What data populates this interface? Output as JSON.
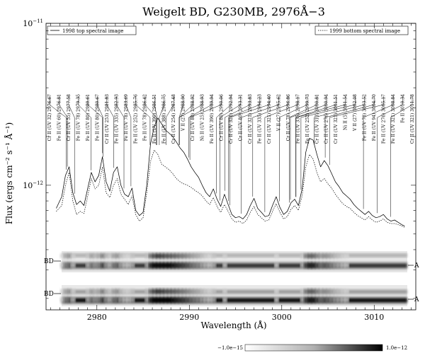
{
  "chart_data": {
    "type": "line",
    "title": "Weigelt BD, G230MB, 2976Å−3",
    "xlabel": "Wavelength (Å)",
    "ylabel": "Flux (ergs cm⁻² s⁻¹ Å⁻¹)",
    "xlim": [
      2974.5,
      3014.5
    ],
    "x_ticks": [
      2980,
      2990,
      3000,
      3010
    ],
    "y_scale": "log",
    "ylim": [
      1.7e-13,
      1e-11
    ],
    "y_tick_labels": [
      {
        "value": 1e-11,
        "base": "10",
        "exp": "−11"
      },
      {
        "value": 1e-12,
        "base": "10",
        "exp": "−12"
      }
    ],
    "legend": {
      "left": "1998 top spectral image",
      "right": "1999 bottom spectral image",
      "placement": "top"
    },
    "series": [
      {
        "style": "solid",
        "x": [
          2975.6,
          2976.2,
          2976.6,
          2977.0,
          2977.4,
          2977.8,
          2978.2,
          2978.6,
          2979.0,
          2979.4,
          2979.8,
          2980.2,
          2980.6,
          2981.0,
          2981.4,
          2981.8,
          2982.2,
          2982.6,
          2983.0,
          2983.4,
          2983.8,
          2984.2,
          2984.6,
          2985.0,
          2985.4,
          2985.8,
          2986.2,
          2986.6,
          2987.0,
          2987.4,
          2987.8,
          2988.2,
          2988.6,
          2989.0,
          2989.4,
          2989.8,
          2990.2,
          2990.6,
          2991.0,
          2991.4,
          2991.8,
          2992.2,
          2992.6,
          2993.0,
          2993.4,
          2993.8,
          2994.2,
          2994.6,
          2995.0,
          2995.4,
          2995.8,
          2996.2,
          2996.6,
          2997.0,
          2997.4,
          2997.8,
          2998.2,
          2998.6,
          2999.0,
          2999.4,
          2999.8,
          3000.2,
          3000.6,
          3001.0,
          3001.4,
          3001.8,
          3002.2,
          3002.6,
          3003.0,
          3003.4,
          3003.8,
          3004.2,
          3004.6,
          3005.0,
          3005.4,
          3005.8,
          3006.2,
          3006.6,
          3007.0,
          3007.4,
          3007.8,
          3008.2,
          3008.6,
          3009.0,
          3009.4,
          3009.8,
          3010.2,
          3010.6,
          3011.0,
          3011.4,
          3011.8,
          3012.2,
          3012.6,
          3013.0,
          3013.3
        ],
        "y": [
          7.2e-13,
          8.5e-13,
          1.15e-12,
          1.3e-12,
          9e-13,
          7.6e-13,
          8e-13,
          7.5e-13,
          9.5e-13,
          1.2e-12,
          1.05e-12,
          1.15e-12,
          1.5e-12,
          1.05e-12,
          9.2e-13,
          1.2e-12,
          1.3e-12,
          1e-12,
          8.8e-13,
          8.5e-13,
          9.6e-13,
          7e-13,
          6.5e-13,
          6.8e-13,
          1e-12,
          1.8e-12,
          2.3e-12,
          2.6e-12,
          2.4e-12,
          2.2e-12,
          2.1e-12,
          2e-12,
          1.85e-12,
          1.7e-12,
          1.6e-12,
          1.45e-12,
          1.3e-12,
          1.2e-12,
          1.12e-12,
          1e-12,
          9e-13,
          8.5e-13,
          9.5e-13,
          8.2e-13,
          7.4e-13,
          8.8e-13,
          7.6e-13,
          6.6e-13,
          6.3e-13,
          6.4e-13,
          6.2e-13,
          6.6e-13,
          7.5e-13,
          8.3e-13,
          7.2e-13,
          6.8e-13,
          6.4e-13,
          6.5e-13,
          7.5e-13,
          8.5e-13,
          7.3e-13,
          6.6e-13,
          6.9e-13,
          7.8e-13,
          8.2e-13,
          7.5e-13,
          9.5e-13,
          1.6e-12,
          1.95e-12,
          1.9e-12,
          1.55e-12,
          1.3e-12,
          1.42e-12,
          1.32e-12,
          1.18e-12,
          1.05e-12,
          9.8e-13,
          9e-13,
          8.6e-13,
          8.2e-13,
          7.6e-13,
          7.2e-13,
          6.9e-13,
          6.6e-13,
          6.9e-13,
          6.5e-13,
          6.3e-13,
          6.4e-13,
          6.6e-13,
          6.2e-13,
          6e-13,
          6.1e-13,
          5.9e-13,
          5.7e-13,
          5.6e-13
        ]
      },
      {
        "style": "dotted",
        "x": [
          2975.6,
          2976.2,
          2976.6,
          2977.0,
          2977.4,
          2977.8,
          2978.2,
          2978.6,
          2979.0,
          2979.4,
          2979.8,
          2980.2,
          2980.6,
          2981.0,
          2981.4,
          2981.8,
          2982.2,
          2982.6,
          2983.0,
          2983.4,
          2983.8,
          2984.2,
          2984.6,
          2985.0,
          2985.4,
          2985.8,
          2986.2,
          2986.6,
          2987.0,
          2987.4,
          2987.8,
          2988.2,
          2988.6,
          2989.0,
          2989.4,
          2989.8,
          2990.2,
          2990.6,
          2991.0,
          2991.4,
          2991.8,
          2992.2,
          2992.6,
          2993.0,
          2993.4,
          2993.8,
          2994.2,
          2994.6,
          2995.0,
          2995.4,
          2995.8,
          2996.2,
          2996.6,
          2997.0,
          2997.4,
          2997.8,
          2998.2,
          2998.6,
          2999.0,
          2999.4,
          2999.8,
          3000.2,
          3000.6,
          3001.0,
          3001.4,
          3001.8,
          3002.2,
          3002.6,
          3003.0,
          3003.4,
          3003.8,
          3004.2,
          3004.6,
          3005.0,
          3005.4,
          3005.8,
          3006.2,
          3006.6,
          3007.0,
          3007.4,
          3007.8,
          3008.2,
          3008.6,
          3009.0,
          3009.4,
          3009.8,
          3010.2,
          3010.6,
          3011.0,
          3011.4,
          3011.8,
          3012.2,
          3012.6,
          3013.0,
          3013.3
        ],
        "y": [
          6.9e-13,
          7.5e-13,
          1e-12,
          1.2e-12,
          8e-13,
          6.6e-13,
          6.9e-13,
          6.7e-13,
          8.5e-13,
          1.1e-12,
          9.5e-13,
          1e-12,
          1.3e-12,
          9e-13,
          8.4e-13,
          1e-12,
          1.1e-12,
          8.8e-13,
          8.2e-13,
          7.6e-13,
          8.6e-13,
          6.6e-13,
          6e-13,
          6.3e-13,
          9e-13,
          1.4e-12,
          1.65e-12,
          1.55e-12,
          1.35e-12,
          1.3e-12,
          1.25e-12,
          1.18e-12,
          1.1e-12,
          1.05e-12,
          1.02e-12,
          1e-12,
          9.7e-13,
          9.3e-13,
          9e-13,
          8.6e-13,
          8e-13,
          7.6e-13,
          8.4e-13,
          7.4e-13,
          6.8e-13,
          7.6e-13,
          6.9e-13,
          6.2e-13,
          5.9e-13,
          6e-13,
          5.8e-13,
          6.1e-13,
          6.8e-13,
          7.4e-13,
          6.6e-13,
          6.3e-13,
          6e-13,
          6.1e-13,
          6.9e-13,
          7.7e-13,
          6.8e-13,
          6.2e-13,
          6.4e-13,
          7.1e-13,
          7.5e-13,
          7e-13,
          8.6e-13,
          1.3e-12,
          1.55e-12,
          1.45e-12,
          1.2e-12,
          1.05e-12,
          1.1e-12,
          1.02e-12,
          9.6e-13,
          8.8e-13,
          8.2e-13,
          7.7e-13,
          7.4e-13,
          7.2e-13,
          6.8e-13,
          6.5e-13,
          6.3e-13,
          6.1e-13,
          6.4e-13,
          6.1e-13,
          5.9e-13,
          6e-13,
          6.2e-13,
          5.9e-13,
          5.8e-13,
          5.8e-13,
          5.7e-13,
          5.6e-13,
          5.5e-13
        ]
      }
    ],
    "line_ids": [
      {
        "label": "Cr II (UV 32) 2976.67",
        "wl": 2976.67
      },
      {
        "label": "Fe II (UV 60) 2976.81",
        "wl": 2976.81
      },
      {
        "label": "Cr II (UV 55) 2977.58",
        "wl": 2977.58
      },
      {
        "label": "Fe II (UV 78) 2979.35",
        "wl": 2979.35
      },
      {
        "label": "Fe II (UV 80) 2980.61",
        "wl": 2980.61
      },
      {
        "label": "Fe II (UV 80) 2980.67",
        "wl": 2980.67
      },
      {
        "label": "Cr II (UV 253) 2981.83",
        "wl": 2981.83
      },
      {
        "label": "Fe II (UV 335) 2982.93",
        "wl": 2982.93
      },
      {
        "label": "Fe II (UV 78) 2983.69",
        "wl": 2983.69
      },
      {
        "label": "Fe II (UV 252) 2985.76",
        "wl": 2985.76
      },
      {
        "label": "Fe II (UV 78) 2986.42",
        "wl": 2986.42
      },
      {
        "label": "Fe II (UV 390) 2986.51",
        "wl": 2986.51
      },
      {
        "label": "Fe II (UV 388) 2986.75",
        "wl": 2986.75
      },
      {
        "label": "Cr II (UV 254) 2987.48",
        "wl": 2987.48
      },
      {
        "label": "V II (27) 2988.90",
        "wl": 2988.9
      },
      {
        "label": "Cr II (UV 80) 2988.92",
        "wl": 2988.92
      },
      {
        "label": "Ni II (UV 25) 2988.93",
        "wl": 2988.93
      },
      {
        "label": "Fe II (UV 390) 2989.94",
        "wl": 2989.94
      },
      {
        "label": "Cr II (UV 80) 2990.06",
        "wl": 2990.06
      },
      {
        "label": "Cr II (UV 321) 2992.94",
        "wl": 2992.94
      },
      {
        "label": "Cr II (UV 80) 2993.31",
        "wl": 2993.31
      },
      {
        "label": "Cr II (UV 321) 2993.83",
        "wl": 2993.83
      },
      {
        "label": "Fe II (UV 335) 2994.23",
        "wl": 2994.23
      },
      {
        "label": "Cr II (UV 321) 2994.40",
        "wl": 2994.4
      },
      {
        "label": "V II (27) 2995.62",
        "wl": 2995.62
      },
      {
        "label": "Cr II (UV 78) 2996.86",
        "wl": 2996.86
      },
      {
        "label": "Fe II (UV 335) 2998.17",
        "wl": 2998.17
      },
      {
        "label": "Fe II (UV 252) 2999.73",
        "wl": 2999.73
      },
      {
        "label": "Cr II (UV 313) 3000.81",
        "wl": 3000.81
      },
      {
        "label": "Cr II (UV 276) 3000.94",
        "wl": 3000.94
      },
      {
        "label": "Cr II (UV 321) 3001.51",
        "wl": 3001.51
      },
      {
        "label": "Ni II (5) 3001.54",
        "wl": 3001.54
      },
      {
        "label": "V II (27) 3002.08",
        "wl": 3002.08
      },
      {
        "label": "Fe II (UV 78) 3003.52",
        "wl": 3003.52
      },
      {
        "label": "Fe II (UV 94) 3004.70",
        "wl": 3004.7
      },
      {
        "label": "Fe II (UV 276) 3005.17",
        "wl": 3005.17
      },
      {
        "label": "Fe II (UV 321) 3008.84",
        "wl": 3008.84
      },
      {
        "label": "Fe II 3010.34",
        "wl": 3010.34
      },
      {
        "label": "Cr II (UV 321) 3011.78",
        "wl": 3011.78
      }
    ],
    "spectral_images": {
      "top_labels": {
        "left": "BD",
        "right": "A"
      },
      "bottom_labels": {
        "left": "BD",
        "right": "A"
      },
      "colorbar": {
        "min_label": "−1.0e−15",
        "max_label": "1.0e−12"
      }
    }
  }
}
